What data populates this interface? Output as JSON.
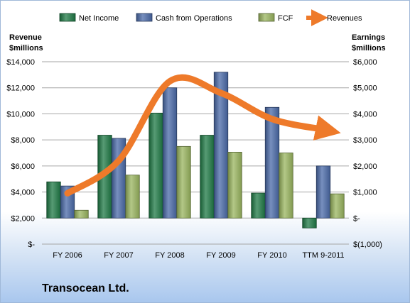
{
  "company": "Transocean Ltd.",
  "chart_data": {
    "type": "bar",
    "categories": [
      "FY 2006",
      "FY 2007",
      "FY 2008",
      "FY 2009",
      "FY 2010",
      "TTM 9-2011"
    ],
    "series": [
      {
        "name": "Net Income",
        "axis": "right",
        "values": [
          1390,
          3180,
          4030,
          3180,
          960,
          -380
        ],
        "color": "#1f7a45"
      },
      {
        "name": "Cash from Operations",
        "axis": "right",
        "values": [
          1230,
          3060,
          5000,
          5600,
          4250,
          2000
        ],
        "color": "#4a6aa8"
      },
      {
        "name": "FCF",
        "axis": "right",
        "values": [
          300,
          1650,
          2750,
          2530,
          2500,
          930
        ],
        "color": "#9ab55f"
      }
    ],
    "line_series": {
      "name": "Revenues",
      "axis": "left",
      "values": [
        3900,
        6400,
        12500,
        11600,
        9600,
        8800
      ],
      "color": "#ee7a2a"
    },
    "left_axis": {
      "title_lines": [
        "Revenue",
        "$millions"
      ],
      "range": [
        0,
        14000
      ],
      "tick_values": [
        0,
        2000,
        4000,
        6000,
        8000,
        10000,
        12000,
        14000
      ],
      "tick_labels": [
        "$-",
        "$2,000",
        "$4,000",
        "$6,000",
        "$8,000",
        "$10,000",
        "$12,000",
        "$14,000"
      ]
    },
    "right_axis": {
      "title_lines": [
        "Earnings",
        "$millions"
      ],
      "range": [
        -1000,
        6000
      ],
      "tick_values": [
        -1000,
        0,
        1000,
        2000,
        3000,
        4000,
        5000,
        6000
      ],
      "tick_labels": [
        "$(1,000)",
        "$-",
        "$1,000",
        "$2,000",
        "$3,000",
        "$4,000",
        "$5,000",
        "$6,000"
      ]
    },
    "legend": {
      "position": "top",
      "items": [
        "Net Income",
        "Cash from Operations",
        "FCF",
        "Revenues"
      ]
    },
    "grid": true
  }
}
